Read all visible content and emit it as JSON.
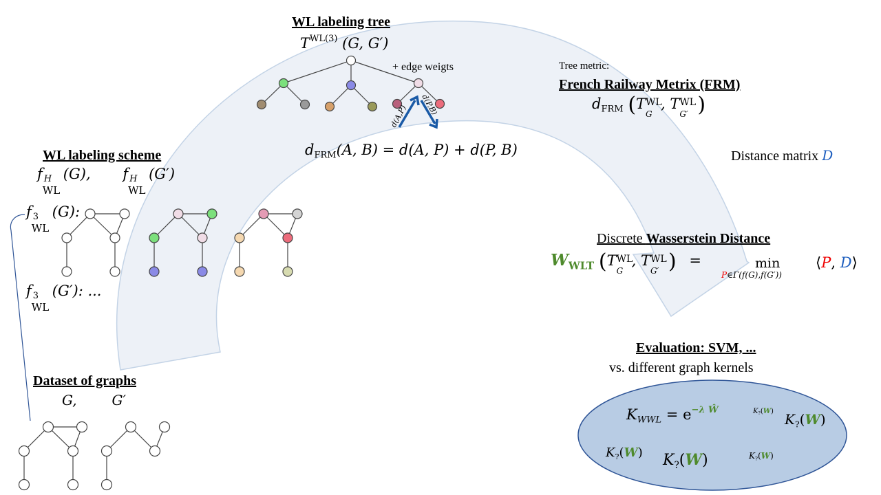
{
  "titles": {
    "wl_tree": "WL labeling tree",
    "wl_scheme": "WL labeling scheme",
    "dataset": "Dataset of graphs",
    "frm": "French Railway Metrix (FRM)",
    "wasserstein_prefix": "Discrete ",
    "wasserstein_bold": "Wasserstein Distance",
    "evaluation": "Evaluation: SVM, ..."
  },
  "texts": {
    "edge_weights": "+ edge weigts",
    "tree_metric": "Tree metric:",
    "distance_matrix": "Distance matrix ",
    "distance_matrix_symbol": "D",
    "vs_kernels": "vs. different graph kernels",
    "dataset_graphs": "G,        G′",
    "tree_T": "T",
    "tree_T_sup": "WL(3)",
    "tree_T_args": "(G, G′)",
    "scheme_f": "f",
    "scheme_sup": "H",
    "scheme_sub": "WL",
    "scheme_arg1": "(G),",
    "scheme_arg2": "(G′)",
    "f3_sup": "3",
    "f3_arg": "(G):",
    "f3p_arg": "(G′): ...",
    "dfrm_d": "d",
    "dfrm_sub": "FRM",
    "dfrm_expr": "(A, B) = d(A, P) + d(P, B)",
    "frm_formula_lhs": "d",
    "frm_formula_T": "T",
    "frm_formula_G": "G",
    "frm_formula_Gp": "G′",
    "frm_formula_WL": "WL",
    "wwlt_W": "W",
    "wwlt_sub": "WLT",
    "wwlt_eq": "=",
    "wwlt_min": "min",
    "wwlt_min_sub_P": "P",
    "wwlt_min_sub_rest": "∈Γ(f(G),f(G′))",
    "wwlt_bracket_l": "⟨",
    "wwlt_P": "P",
    "wwlt_comma": ",",
    "wwlt_D": "D",
    "wwlt_bracket_r": "⟩",
    "edge_label_ap": "d(A,P)",
    "edge_label_pb": "d(P,B)",
    "kernel_main_K": "K",
    "kernel_main_sub": "WWL",
    "kernel_main_rhs": "= e",
    "kernel_main_sup": "−λ Ŵ",
    "kernel_q": "K",
    "kernel_q_sub": "?",
    "kernel_q_arg_l": "(",
    "kernel_q_W": "W",
    "kernel_q_arg_r": ")"
  },
  "colors": {
    "arc_fill": "#edf1f7",
    "arc_stroke": "#c3d3e6",
    "ellipse_fill": "#b8cce4",
    "ellipse_stroke": "#2f5597",
    "arrow_blue": "#1a5aa6",
    "green_node": "#7ce07c",
    "blue_node": "#8a8ae6",
    "pink_node": "#f0dce6",
    "rose_node": "#e49bb4",
    "red_node": "#ec6c7c",
    "brown_node": "#a08c70",
    "gray_node": "#9a9a9a",
    "orange_node": "#d6a06a",
    "olive_node": "#9a9a5a",
    "light_gray_node": "#d4d4d4",
    "beige_node": "#f5d8b0",
    "sage_node": "#d7dbb0",
    "mauve_node": "#b8607c"
  }
}
